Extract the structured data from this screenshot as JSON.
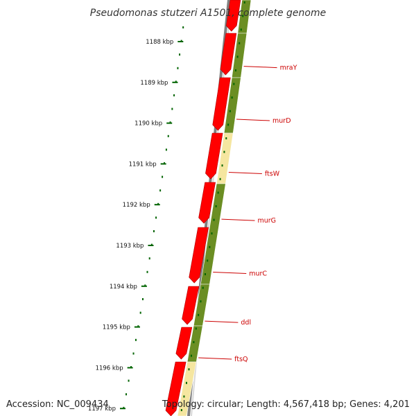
{
  "title": "Pseudomonas stutzeri A1501, complete genome",
  "accession": "Accession: NC_009434",
  "topology": "Topology: circular; Length: 4,567,418 bp; Genes: 4,201",
  "colors": {
    "backbone": "#808080",
    "cds_forward": "#ff0000",
    "cds_reverse": "#6b8e23",
    "cds_other": "#f5e6a0",
    "tick": "#006400",
    "label": "#cc0000"
  },
  "ticks": [
    {
      "kbp": 1188,
      "label": "1188 kbp"
    },
    {
      "kbp": 1189,
      "label": "1189 kbp"
    },
    {
      "kbp": 1190,
      "label": "1190 kbp"
    },
    {
      "kbp": 1191,
      "label": "1191 kbp"
    },
    {
      "kbp": 1192,
      "label": "1192 kbp"
    },
    {
      "kbp": 1193,
      "label": "1193 kbp"
    },
    {
      "kbp": 1194,
      "label": "1194 kbp"
    },
    {
      "kbp": 1195,
      "label": "1195 kbp"
    },
    {
      "kbp": 1196,
      "label": "1196 kbp"
    },
    {
      "kbp": 1197,
      "label": "1197 kbp"
    }
  ],
  "genes": [
    {
      "name": "mraY",
      "kbp": 1188.35
    },
    {
      "name": "murD",
      "kbp": 1189.65
    },
    {
      "name": "ftsW",
      "kbp": 1190.95
    },
    {
      "name": "murG",
      "kbp": 1192.1
    },
    {
      "name": "murC",
      "kbp": 1193.4
    },
    {
      "name": "ddl",
      "kbp": 1194.6
    },
    {
      "name": "ftsQ",
      "kbp": 1195.5
    }
  ]
}
